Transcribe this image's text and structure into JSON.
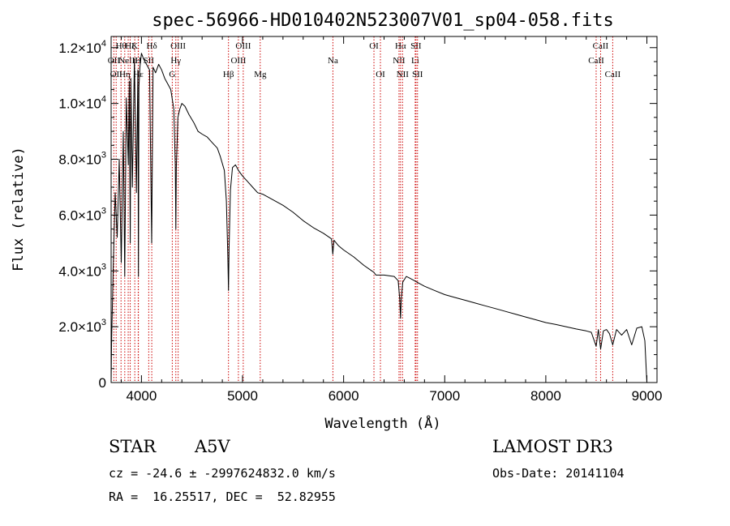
{
  "chart_data": {
    "type": "line",
    "title": "spec-56966-HD010402N523007V01_sp04-058.fits",
    "xlabel": "Wavelength (Å)",
    "ylabel": "Flux (relative)",
    "xlim": [
      3700,
      9100
    ],
    "ylim": [
      0,
      12400
    ],
    "x_ticks": [
      4000,
      5000,
      6000,
      7000,
      8000,
      9000
    ],
    "y_ticks": [
      {
        "value": 0,
        "mantissa": "0",
        "exponent": ""
      },
      {
        "value": 2000,
        "mantissa": "2.0×10",
        "exponent": "3"
      },
      {
        "value": 4000,
        "mantissa": "4.0×10",
        "exponent": "3"
      },
      {
        "value": 6000,
        "mantissa": "6.0×10",
        "exponent": "3"
      },
      {
        "value": 8000,
        "mantissa": "8.0×10",
        "exponent": "3"
      },
      {
        "value": 10000,
        "mantissa": "1.0×10",
        "exponent": "4"
      },
      {
        "value": 12000,
        "mantissa": "1.2×10",
        "exponent": "4"
      }
    ],
    "series": [
      {
        "name": "flux",
        "x": [
          3700,
          3705,
          3720,
          3740,
          3760,
          3780,
          3800,
          3820,
          3835,
          3850,
          3870,
          3880,
          3889,
          3895,
          3910,
          3930,
          3950,
          3965,
          3970,
          3975,
          3985,
          4000,
          4020,
          4050,
          4080,
          4101,
          4115,
          4140,
          4170,
          4200,
          4230,
          4260,
          4290,
          4320,
          4335,
          4340,
          4345,
          4360,
          4380,
          4400,
          4430,
          4470,
          4520,
          4560,
          4600,
          4650,
          4700,
          4750,
          4780,
          4820,
          4840,
          4855,
          4861,
          4867,
          4880,
          4900,
          4930,
          4960,
          5000,
          5050,
          5100,
          5150,
          5200,
          5300,
          5400,
          5500,
          5600,
          5700,
          5800,
          5880,
          5893,
          5905,
          5950,
          6000,
          6100,
          6200,
          6280,
          6300,
          6320,
          6400,
          6500,
          6540,
          6555,
          6563,
          6570,
          6585,
          6620,
          6650,
          6700,
          6750,
          6800,
          6900,
          7000,
          7100,
          7200,
          7300,
          7400,
          7500,
          7600,
          7700,
          7800,
          7900,
          8000,
          8100,
          8200,
          8300,
          8400,
          8450,
          8498,
          8520,
          8542,
          8570,
          8600,
          8630,
          8662,
          8700,
          8750,
          8800,
          8850,
          8900,
          8950,
          8980,
          9000
        ],
        "values": [
          0,
          1500,
          4000,
          6800,
          5200,
          8000,
          4300,
          9000,
          3800,
          10200,
          7800,
          10800,
          5000,
          10900,
          7000,
          11600,
          6800,
          11200,
          3800,
          10600,
          11300,
          11800,
          11600,
          11400,
          11200,
          5000,
          11300,
          11100,
          11400,
          11200,
          10900,
          10700,
          10500,
          9800,
          7800,
          5500,
          7700,
          9500,
          9800,
          10000,
          9900,
          9600,
          9300,
          9000,
          8900,
          8800,
          8600,
          8400,
          8100,
          7600,
          6500,
          4500,
          3300,
          4800,
          6900,
          7700,
          7800,
          7600,
          7400,
          7200,
          7000,
          6800,
          6750,
          6550,
          6350,
          6100,
          5800,
          5550,
          5350,
          5150,
          4600,
          5100,
          4900,
          4750,
          4500,
          4200,
          4000,
          3950,
          3850,
          3850,
          3800,
          3650,
          3000,
          2300,
          3000,
          3600,
          3800,
          3750,
          3650,
          3550,
          3450,
          3300,
          3150,
          3050,
          2950,
          2850,
          2750,
          2650,
          2550,
          2450,
          2350,
          2250,
          2150,
          2080,
          2000,
          1920,
          1850,
          1800,
          1300,
          1900,
          1200,
          1850,
          1900,
          1750,
          1350,
          1900,
          1700,
          1900,
          1350,
          1950,
          2000,
          1500,
          0
        ]
      }
    ],
    "line_markers": [
      {
        "wavelength": 3727,
        "label": "OII",
        "row": 1
      },
      {
        "wavelength": 3750,
        "label": "OII",
        "row": 2
      },
      {
        "wavelength": 3798,
        "label": "Hθ",
        "row": 0
      },
      {
        "wavelength": 3835,
        "label": "Hη",
        "row": 2
      },
      {
        "wavelength": 3869,
        "label": "NeIII",
        "row": 1
      },
      {
        "wavelength": 3889,
        "label": "Hζ",
        "row": 0
      },
      {
        "wavelength": 3934,
        "label": "K",
        "row": 0
      },
      {
        "wavelength": 3970,
        "label": "Hε",
        "row": 2
      },
      {
        "wavelength": 3968,
        "label": "H",
        "row": 1
      },
      {
        "wavelength": 4072,
        "label": "SII",
        "row": 1
      },
      {
        "wavelength": 4102,
        "label": "Hδ",
        "row": 0
      },
      {
        "wavelength": 4305,
        "label": "G",
        "row": 2
      },
      {
        "wavelength": 4340,
        "label": "Hγ",
        "row": 1
      },
      {
        "wavelength": 4363,
        "label": "OIII",
        "row": 0
      },
      {
        "wavelength": 4861,
        "label": "Hβ",
        "row": 2
      },
      {
        "wavelength": 4959,
        "label": "OIII",
        "row": 1
      },
      {
        "wavelength": 5007,
        "label": "OIII",
        "row": 0
      },
      {
        "wavelength": 5175,
        "label": "Mg",
        "row": 2
      },
      {
        "wavelength": 5894,
        "label": "Na",
        "row": 1
      },
      {
        "wavelength": 6300,
        "label": "OI",
        "row": 0
      },
      {
        "wavelength": 6364,
        "label": "OI",
        "row": 2
      },
      {
        "wavelength": 6548,
        "label": "NII",
        "row": 1
      },
      {
        "wavelength": 6563,
        "label": "Hα",
        "row": 0
      },
      {
        "wavelength": 6583,
        "label": "NII",
        "row": 2
      },
      {
        "wavelength": 6708,
        "label": "Li",
        "row": 1
      },
      {
        "wavelength": 6716,
        "label": "SII",
        "row": 0
      },
      {
        "wavelength": 6731,
        "label": "SII",
        "row": 2
      },
      {
        "wavelength": 8498,
        "label": "CaII",
        "row": 1
      },
      {
        "wavelength": 8542,
        "label": "CaII",
        "row": 0
      },
      {
        "wavelength": 8662,
        "label": "CaII",
        "row": 2
      }
    ],
    "marker_color": "#cc0000",
    "line_color": "#000000"
  },
  "info": {
    "object_class": "STAR",
    "subclass": "A5V",
    "survey": "LAMOST DR3",
    "redshift": "cz = -24.6 ± -2997624832.0 km/s",
    "obs_date": "Obs-Date: 20141104",
    "coords": "RA =  16.25517, DEC =  52.82955"
  }
}
